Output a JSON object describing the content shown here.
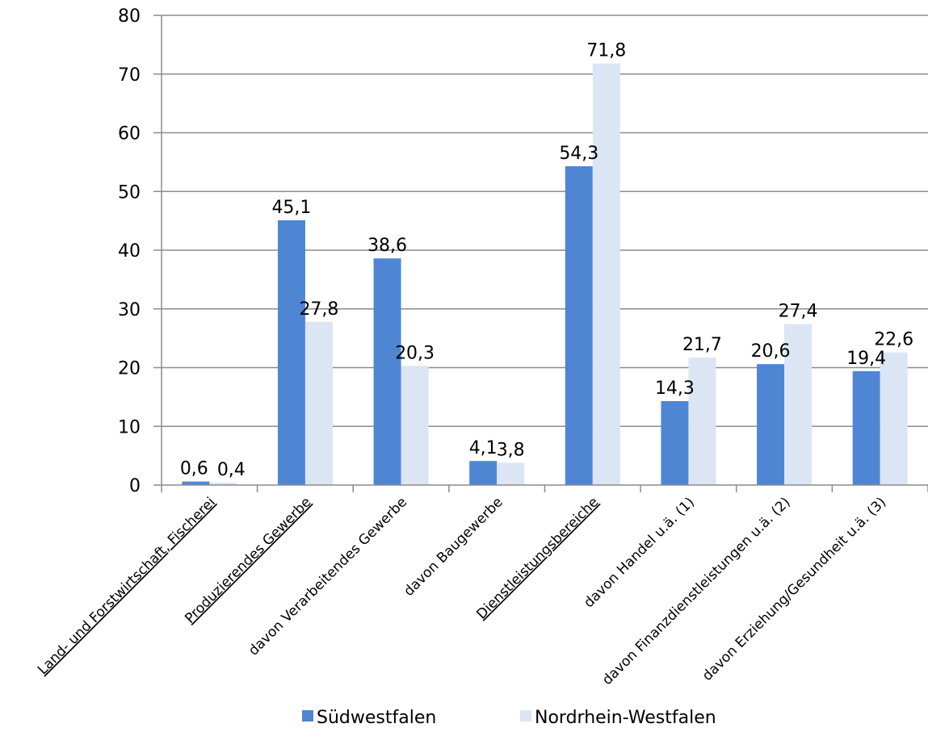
{
  "chart_data": {
    "type": "bar",
    "categories": [
      "Land- und Forstwirtschaft, Fischerei",
      "Produzierendes Gewerbe",
      "davon Verarbeitendes Gewerbe",
      "davon Baugewerbe",
      "Dienstleistungsbereiche",
      "davon Handel u.ä. (1)",
      "davon Finanzdienstleistungen u.ä. (2)",
      "davon Erziehung/Gesundheit u.ä. (3)"
    ],
    "underlined_categories": [
      "Land- und Forstwirtschaft, Fischerei",
      "Produzierendes Gewerbe",
      "Dienstleistungsbereiche"
    ],
    "series": [
      {
        "name": "Südwestfalen",
        "color": "#4f86d4",
        "values": [
          0.6,
          45.1,
          38.6,
          4.1,
          54.3,
          14.3,
          20.6,
          19.4
        ],
        "labels": [
          "0,6",
          "45,1",
          "38,6",
          "4,1",
          "54,3",
          "14,3",
          "20,6",
          "19,4"
        ]
      },
      {
        "name": "Nordrhein-Westfalen",
        "color": "#dbe5f3",
        "values": [
          0.4,
          27.8,
          20.3,
          3.8,
          71.8,
          21.7,
          27.4,
          22.6
        ],
        "labels": [
          "0,4",
          "27,8",
          "20,3",
          "3,8",
          "71,8",
          "21,7",
          "27,4",
          "22,6"
        ]
      }
    ],
    "title": "",
    "xlabel": "",
    "ylabel": "",
    "ylim": [
      0,
      80
    ],
    "yticks": [
      0,
      10,
      20,
      30,
      40,
      50,
      60,
      70,
      80
    ],
    "grid": true,
    "legend": "bottom",
    "colors": {
      "gridline": "#8c8c8c",
      "axis": "#8c8c8c"
    }
  }
}
